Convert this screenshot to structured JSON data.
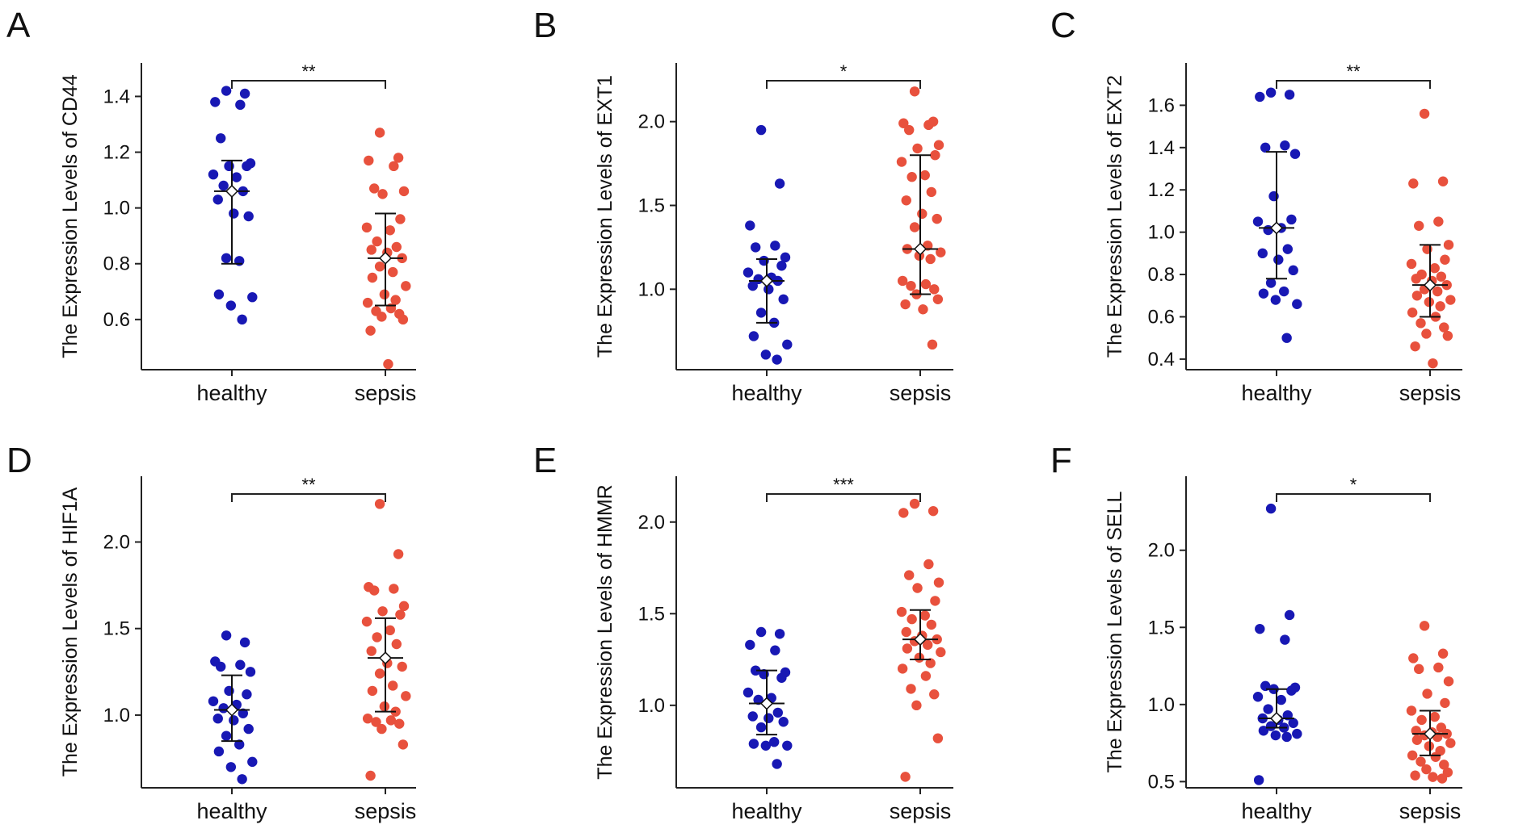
{
  "figure": {
    "colors": {
      "healthy": "#1818b4",
      "sepsis": "#e8513d",
      "axis": "#222222",
      "mean_fill": "#ffffff"
    }
  },
  "chart_data": [
    {
      "type": "scatter",
      "panel": "A",
      "ylabel": "The Expression Levels of CD44",
      "categories": [
        "healthy",
        "sepsis"
      ],
      "ylim": [
        0.42,
        1.52
      ],
      "yticks": [
        0.6,
        0.8,
        1.0,
        1.2,
        1.4
      ],
      "ytick_labels": [
        "0.6",
        "0.8",
        "1.0",
        "1.2",
        "1.4"
      ],
      "significance": "**",
      "series": [
        {
          "name": "healthy",
          "mean": 1.06,
          "err_low": 0.8,
          "err_high": 1.17,
          "values": [
            1.42,
            1.41,
            1.38,
            1.37,
            1.25,
            1.16,
            1.15,
            1.15,
            1.12,
            1.11,
            1.08,
            1.06,
            1.03,
            0.98,
            0.97,
            0.82,
            0.81,
            0.69,
            0.68,
            0.65,
            0.6
          ]
        },
        {
          "name": "sepsis",
          "mean": 0.82,
          "err_low": 0.65,
          "err_high": 0.98,
          "values": [
            1.27,
            1.18,
            1.17,
            1.15,
            1.07,
            1.06,
            1.05,
            0.96,
            0.93,
            0.92,
            0.88,
            0.86,
            0.85,
            0.84,
            0.82,
            0.79,
            0.77,
            0.75,
            0.72,
            0.69,
            0.67,
            0.66,
            0.64,
            0.63,
            0.62,
            0.61,
            0.6,
            0.56,
            0.44
          ]
        }
      ]
    },
    {
      "type": "scatter",
      "panel": "B",
      "ylabel": "The Expression Levels of EXT1",
      "categories": [
        "healthy",
        "sepsis"
      ],
      "ylim": [
        0.52,
        2.35
      ],
      "yticks": [
        1.0,
        1.5,
        2.0
      ],
      "ytick_labels": [
        "1.0",
        "1.5",
        "2.0"
      ],
      "significance": "*",
      "series": [
        {
          "name": "healthy",
          "mean": 1.05,
          "err_low": 0.8,
          "err_high": 1.18,
          "values": [
            1.95,
            1.63,
            1.38,
            1.26,
            1.25,
            1.19,
            1.17,
            1.14,
            1.1,
            1.07,
            1.06,
            1.05,
            1.02,
            1.0,
            0.94,
            0.86,
            0.8,
            0.72,
            0.67,
            0.61,
            0.58
          ]
        },
        {
          "name": "sepsis",
          "mean": 1.24,
          "err_low": 0.97,
          "err_high": 1.8,
          "values": [
            2.18,
            2.0,
            1.99,
            1.98,
            1.95,
            1.86,
            1.84,
            1.8,
            1.76,
            1.68,
            1.67,
            1.58,
            1.53,
            1.45,
            1.42,
            1.37,
            1.26,
            1.24,
            1.22,
            1.2,
            1.18,
            1.05,
            1.03,
            1.02,
            1.0,
            0.97,
            0.94,
            0.91,
            0.88,
            0.67
          ]
        }
      ]
    },
    {
      "type": "scatter",
      "panel": "C",
      "ylabel": "The Expression Levels of EXT2",
      "categories": [
        "healthy",
        "sepsis"
      ],
      "ylim": [
        0.35,
        1.8
      ],
      "yticks": [
        0.4,
        0.6,
        0.8,
        1.0,
        1.2,
        1.4,
        1.6
      ],
      "ytick_labels": [
        "0.4",
        "0.6",
        "0.8",
        "1.0",
        "1.2",
        "1.4",
        "1.6"
      ],
      "significance": "**",
      "series": [
        {
          "name": "healthy",
          "mean": 1.02,
          "err_low": 0.78,
          "err_high": 1.38,
          "values": [
            1.66,
            1.65,
            1.64,
            1.41,
            1.4,
            1.37,
            1.17,
            1.06,
            1.05,
            1.02,
            1.01,
            0.92,
            0.9,
            0.87,
            0.82,
            0.76,
            0.72,
            0.71,
            0.66,
            0.68,
            0.5
          ]
        },
        {
          "name": "sepsis",
          "mean": 0.75,
          "err_low": 0.6,
          "err_high": 0.94,
          "values": [
            1.56,
            1.24,
            1.23,
            1.05,
            1.03,
            0.94,
            0.92,
            0.87,
            0.85,
            0.83,
            0.8,
            0.79,
            0.78,
            0.77,
            0.75,
            0.73,
            0.72,
            0.7,
            0.68,
            0.67,
            0.65,
            0.62,
            0.6,
            0.57,
            0.55,
            0.52,
            0.51,
            0.46,
            0.38
          ]
        }
      ]
    },
    {
      "type": "scatter",
      "panel": "D",
      "ylabel": "The Expression Levels of HIF1A",
      "categories": [
        "healthy",
        "sepsis"
      ],
      "ylim": [
        0.58,
        2.38
      ],
      "yticks": [
        1.0,
        1.5,
        2.0
      ],
      "ytick_labels": [
        "1.0",
        "1.5",
        "2.0"
      ],
      "significance": "**",
      "series": [
        {
          "name": "healthy",
          "mean": 1.03,
          "err_low": 0.85,
          "err_high": 1.23,
          "values": [
            1.46,
            1.42,
            1.31,
            1.29,
            1.28,
            1.25,
            1.14,
            1.12,
            1.08,
            1.06,
            1.04,
            1.01,
            0.98,
            0.97,
            0.92,
            0.88,
            0.83,
            0.79,
            0.73,
            0.7,
            0.63
          ]
        },
        {
          "name": "sepsis",
          "mean": 1.33,
          "err_low": 1.02,
          "err_high": 1.56,
          "values": [
            2.22,
            1.93,
            1.74,
            1.73,
            1.72,
            1.63,
            1.6,
            1.58,
            1.54,
            1.49,
            1.45,
            1.41,
            1.37,
            1.3,
            1.28,
            1.24,
            1.17,
            1.14,
            1.11,
            1.05,
            1.02,
            0.98,
            0.97,
            0.96,
            0.95,
            0.92,
            0.83,
            0.65
          ]
        }
      ]
    },
    {
      "type": "scatter",
      "panel": "E",
      "ylabel": "The Expression Levels of HMMR",
      "categories": [
        "healthy",
        "sepsis"
      ],
      "ylim": [
        0.55,
        2.25
      ],
      "yticks": [
        1.0,
        1.5,
        2.0
      ],
      "ytick_labels": [
        "1.0",
        "1.5",
        "2.0"
      ],
      "significance": "***",
      "series": [
        {
          "name": "healthy",
          "mean": 1.01,
          "err_low": 0.84,
          "err_high": 1.19,
          "values": [
            1.4,
            1.39,
            1.33,
            1.3,
            1.19,
            1.18,
            1.17,
            1.15,
            1.07,
            1.04,
            1.03,
            0.96,
            0.94,
            0.93,
            0.91,
            0.88,
            0.8,
            0.79,
            0.78,
            0.78,
            0.68
          ]
        },
        {
          "name": "sepsis",
          "mean": 1.36,
          "err_low": 1.25,
          "err_high": 1.52,
          "values": [
            2.1,
            2.06,
            2.05,
            1.77,
            1.71,
            1.67,
            1.64,
            1.57,
            1.51,
            1.49,
            1.47,
            1.44,
            1.4,
            1.38,
            1.36,
            1.35,
            1.33,
            1.31,
            1.29,
            1.26,
            1.23,
            1.2,
            1.16,
            1.09,
            1.06,
            1.0,
            0.82,
            0.61
          ]
        }
      ]
    },
    {
      "type": "scatter",
      "panel": "F",
      "ylabel": "The Expression Levels of SELL",
      "categories": [
        "healthy",
        "sepsis"
      ],
      "ylim": [
        0.46,
        2.48
      ],
      "yticks": [
        0.5,
        1.0,
        1.5,
        2.0
      ],
      "ytick_labels": [
        "0.5",
        "1.0",
        "1.5",
        "2.0"
      ],
      "significance": "*",
      "series": [
        {
          "name": "healthy",
          "mean": 0.91,
          "err_low": 0.85,
          "err_high": 1.1,
          "values": [
            2.27,
            1.58,
            1.49,
            1.42,
            1.12,
            1.11,
            1.1,
            1.09,
            1.05,
            1.03,
            0.97,
            0.93,
            0.91,
            0.9,
            0.88,
            0.86,
            0.85,
            0.83,
            0.81,
            0.8,
            0.79,
            0.51
          ]
        },
        {
          "name": "sepsis",
          "mean": 0.81,
          "err_low": 0.67,
          "err_high": 0.96,
          "values": [
            1.51,
            1.33,
            1.3,
            1.24,
            1.23,
            1.15,
            1.07,
            1.01,
            0.96,
            0.92,
            0.9,
            0.85,
            0.83,
            0.82,
            0.81,
            0.8,
            0.79,
            0.77,
            0.75,
            0.73,
            0.7,
            0.67,
            0.66,
            0.63,
            0.61,
            0.58,
            0.56,
            0.54,
            0.53,
            0.52
          ]
        }
      ]
    }
  ]
}
